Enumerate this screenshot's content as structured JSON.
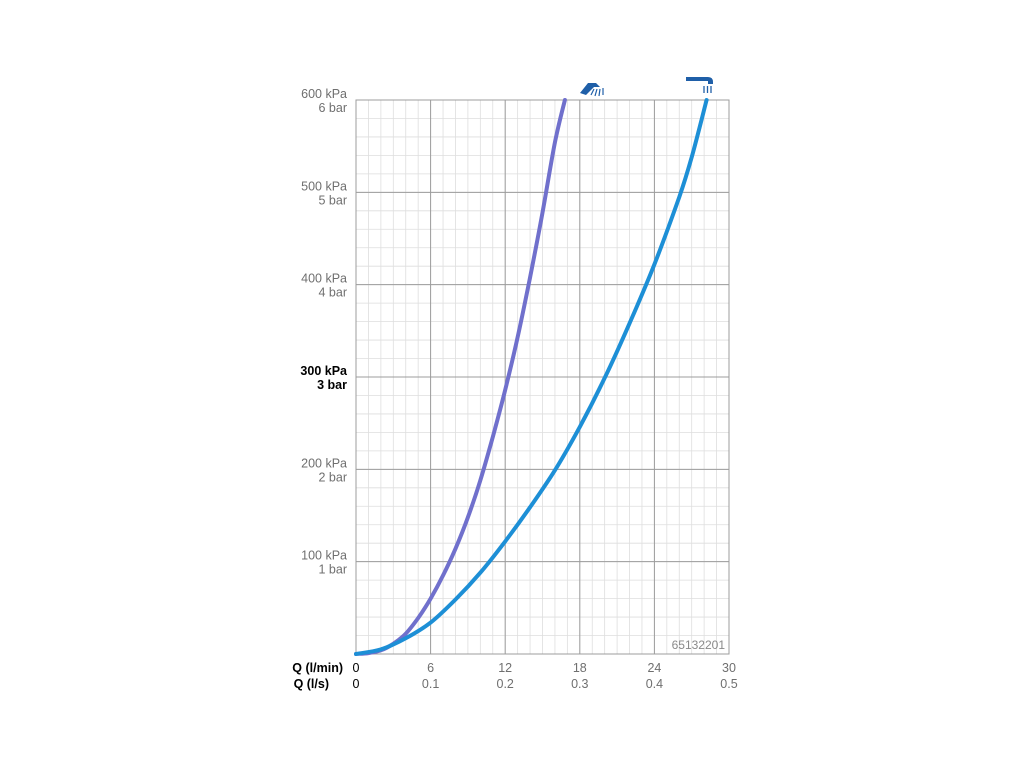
{
  "chart_data": {
    "type": "line",
    "code": "65132201",
    "x_axis": {
      "name_primary": "Q (l/min)",
      "name_secondary": "Q (l/s)",
      "range": [
        0,
        30
      ],
      "ticks_primary": [
        "0",
        "6",
        "12",
        "18",
        "24",
        "30"
      ],
      "ticks_secondary": [
        "0",
        "0.1",
        "0.2",
        "0.3",
        "0.4",
        "0.5"
      ]
    },
    "y_axis": {
      "range": [
        0,
        600
      ],
      "ticks": [
        {
          "value": 100,
          "kpa": "100 kPa",
          "bar": "1 bar",
          "bold": false
        },
        {
          "value": 200,
          "kpa": "200 kPa",
          "bar": "2 bar",
          "bold": false
        },
        {
          "value": 300,
          "kpa": "300 kPa",
          "bar": "3 bar",
          "bold": true
        },
        {
          "value": 400,
          "kpa": "400 kPa",
          "bar": "4 bar",
          "bold": false
        },
        {
          "value": 500,
          "kpa": "500 kPa",
          "bar": "5 bar",
          "bold": false
        },
        {
          "value": 600,
          "kpa": "600 kPa",
          "bar": "6 bar",
          "bold": false
        }
      ]
    },
    "grid": true,
    "series": [
      {
        "icon": "hand-shower-icon",
        "color": "#7070cc",
        "points": [
          [
            0,
            0
          ],
          [
            1,
            1
          ],
          [
            2,
            4
          ],
          [
            3,
            11
          ],
          [
            4,
            22
          ],
          [
            5,
            39
          ],
          [
            6,
            60
          ],
          [
            7,
            85
          ],
          [
            8,
            114
          ],
          [
            9,
            148
          ],
          [
            10,
            188
          ],
          [
            11,
            235
          ],
          [
            12,
            286
          ],
          [
            13,
            343
          ],
          [
            14,
            408
          ],
          [
            15,
            478
          ],
          [
            16,
            554
          ],
          [
            16.8,
            600
          ]
        ]
      },
      {
        "icon": "overhead-shower-icon",
        "color": "#1d8fd6",
        "points": [
          [
            0,
            0
          ],
          [
            2,
            5
          ],
          [
            4,
            17
          ],
          [
            6,
            34
          ],
          [
            8,
            59
          ],
          [
            10,
            88
          ],
          [
            12,
            122
          ],
          [
            14,
            159
          ],
          [
            16,
            199
          ],
          [
            18,
            246
          ],
          [
            20,
            299
          ],
          [
            22,
            358
          ],
          [
            24,
            422
          ],
          [
            26,
            495
          ],
          [
            27,
            538
          ],
          [
            28.2,
            600
          ]
        ]
      }
    ]
  }
}
